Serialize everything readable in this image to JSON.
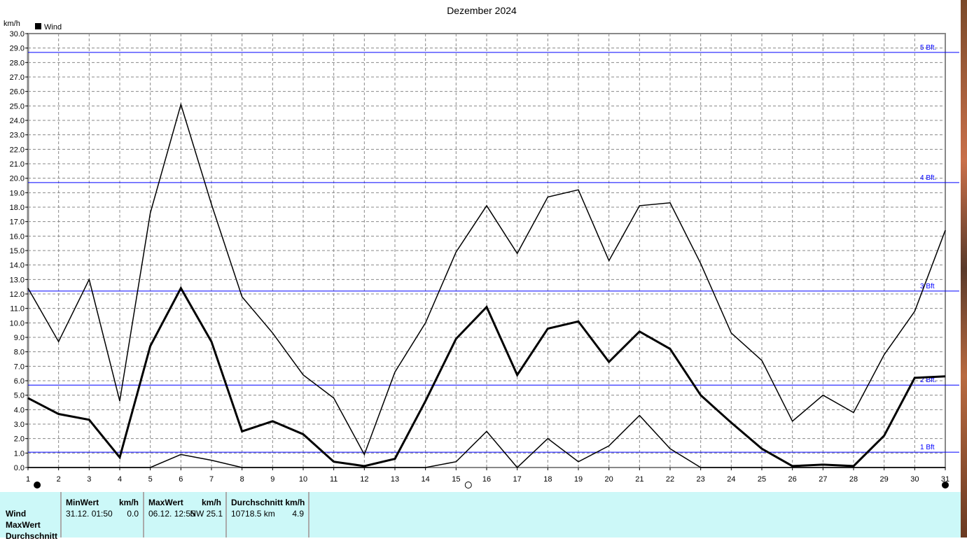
{
  "chart_data": {
    "type": "line",
    "title": "Dezember 2024",
    "ylabel": "km/h",
    "legend": [
      {
        "name": "Wind",
        "color": "#000000"
      }
    ],
    "legend_placement": "top-left",
    "x": [
      1,
      2,
      3,
      4,
      5,
      6,
      7,
      8,
      9,
      10,
      11,
      12,
      13,
      14,
      15,
      16,
      17,
      18,
      19,
      20,
      21,
      22,
      23,
      24,
      25,
      26,
      27,
      28,
      29,
      30,
      31
    ],
    "xlim": [
      1,
      31
    ],
    "ylim": [
      0,
      30
    ],
    "ytick_step": 1,
    "grid": true,
    "series": [
      {
        "role": "max",
        "values": [
          12.4,
          8.7,
          13.0,
          4.6,
          17.6,
          25.1,
          18.2,
          11.8,
          9.3,
          6.4,
          4.8,
          0.9,
          6.6,
          10.0,
          14.9,
          18.1,
          14.8,
          18.7,
          19.2,
          14.3,
          18.1,
          18.3,
          14.1,
          9.3,
          7.4,
          3.2,
          5.0,
          3.8,
          7.8,
          10.8,
          16.4
        ]
      },
      {
        "role": "average",
        "values": [
          4.8,
          3.7,
          3.3,
          0.7,
          8.4,
          12.4,
          8.7,
          2.5,
          3.2,
          2.3,
          0.4,
          0.1,
          0.6,
          4.6,
          8.9,
          11.1,
          6.4,
          9.6,
          10.1,
          7.3,
          9.4,
          8.2,
          5.0,
          3.1,
          1.3,
          0.1,
          0.2,
          0.1,
          2.2,
          6.2,
          6.3
        ]
      },
      {
        "role": "min",
        "values": [
          0,
          0,
          0,
          0,
          0,
          0.9,
          0.5,
          0,
          0,
          0,
          0,
          0,
          0,
          0,
          0.4,
          2.5,
          0,
          2.0,
          0.4,
          1.5,
          3.6,
          1.3,
          0,
          0,
          0,
          0,
          0,
          0,
          0,
          0,
          0
        ]
      }
    ],
    "reference_lines": [
      {
        "label": "1 Bft",
        "value": 1.06
      },
      {
        "label": "2 Bft.",
        "value": 5.7
      },
      {
        "label": "3 Bft",
        "value": 12.2
      },
      {
        "label": "4 Bft.",
        "value": 19.7
      },
      {
        "label": "5 Bft.",
        "value": 28.7
      }
    ],
    "reference_color": "#0000ff",
    "moon_phases": [
      {
        "day": 1.3,
        "phase": "new-moon"
      },
      {
        "day": 15.4,
        "phase": "full-moon"
      },
      {
        "day": 31,
        "phase": "new-moon"
      }
    ]
  },
  "stats": {
    "row_labels": [
      "Wind",
      "MaxWert",
      "Durchschnitt"
    ],
    "min": {
      "header": "MinWert",
      "unit": "km/h",
      "time": "31.12.  01:50",
      "value": "0.0"
    },
    "max": {
      "header": "MaxWert",
      "unit": "km/h",
      "time": "06.12.  12:55",
      "value": "NW 25.1"
    },
    "avg": {
      "header": "Durchschnitt km/h",
      "distance": "10718.5 km",
      "value": "4.9"
    }
  }
}
